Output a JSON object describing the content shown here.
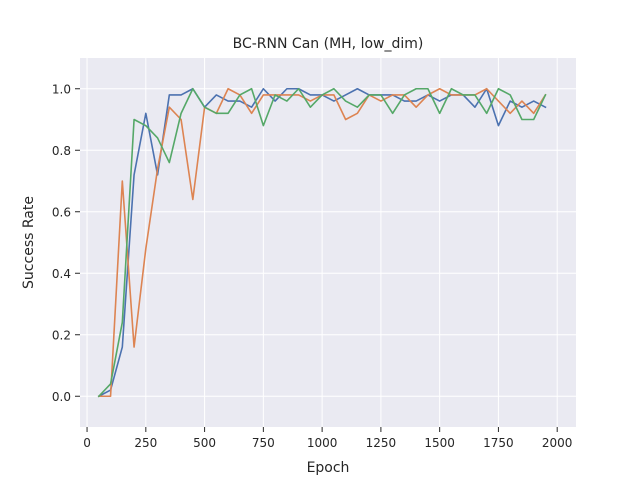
{
  "chart_data": {
    "type": "line",
    "title": "BC-RNN Can (MH, low_dim)",
    "xlabel": "Epoch",
    "ylabel": "Success Rate",
    "xlim": [
      -30,
      2080
    ],
    "ylim": [
      -0.1,
      1.1
    ],
    "xticks": [
      0,
      250,
      500,
      750,
      1000,
      1250,
      1500,
      1750,
      2000
    ],
    "xtick_labels": [
      "0",
      "250",
      "500",
      "750",
      "1000",
      "1250",
      "1500",
      "1750",
      "2000"
    ],
    "yticks": [
      0.0,
      0.2,
      0.4,
      0.6,
      0.8,
      1.0
    ],
    "ytick_labels": [
      "0.0",
      "0.2",
      "0.4",
      "0.6",
      "0.8",
      "1.0"
    ],
    "grid": true,
    "legend": "none",
    "x": [
      50,
      100,
      150,
      200,
      250,
      300,
      350,
      400,
      450,
      500,
      550,
      600,
      650,
      700,
      750,
      800,
      850,
      900,
      950,
      1000,
      1050,
      1100,
      1150,
      1200,
      1250,
      1300,
      1350,
      1400,
      1450,
      1500,
      1550,
      1600,
      1650,
      1700,
      1750,
      1800,
      1850,
      1900,
      1950
    ],
    "series": [
      {
        "color": "#4c72b0",
        "values": [
          0.0,
          0.02,
          0.16,
          0.72,
          0.92,
          0.72,
          0.98,
          0.98,
          1.0,
          0.94,
          0.98,
          0.96,
          0.96,
          0.94,
          1.0,
          0.96,
          1.0,
          1.0,
          0.98,
          0.98,
          0.96,
          0.98,
          1.0,
          0.98,
          0.98,
          0.98,
          0.96,
          0.96,
          0.98,
          0.96,
          0.98,
          0.98,
          0.94,
          1.0,
          0.88,
          0.96,
          0.94,
          0.96,
          0.94
        ]
      },
      {
        "color": "#dd8452",
        "values": [
          0.0,
          0.0,
          0.7,
          0.16,
          0.48,
          0.74,
          0.94,
          0.9,
          0.64,
          0.94,
          0.92,
          1.0,
          0.98,
          0.92,
          0.98,
          0.98,
          0.98,
          0.98,
          0.96,
          0.98,
          0.98,
          0.9,
          0.92,
          0.98,
          0.96,
          0.98,
          0.98,
          0.94,
          0.98,
          1.0,
          0.98,
          0.98,
          0.98,
          1.0,
          0.96,
          0.92,
          0.96,
          0.92,
          0.98
        ]
      },
      {
        "color": "#55a868",
        "values": [
          0.0,
          0.04,
          0.24,
          0.9,
          0.88,
          0.84,
          0.76,
          0.92,
          1.0,
          0.94,
          0.92,
          0.92,
          0.98,
          1.0,
          0.88,
          0.98,
          0.96,
          1.0,
          0.94,
          0.98,
          1.0,
          0.96,
          0.94,
          0.98,
          0.98,
          0.92,
          0.98,
          1.0,
          1.0,
          0.92,
          1.0,
          0.98,
          0.98,
          0.92,
          1.0,
          0.98,
          0.9,
          0.9,
          0.98
        ]
      }
    ]
  }
}
